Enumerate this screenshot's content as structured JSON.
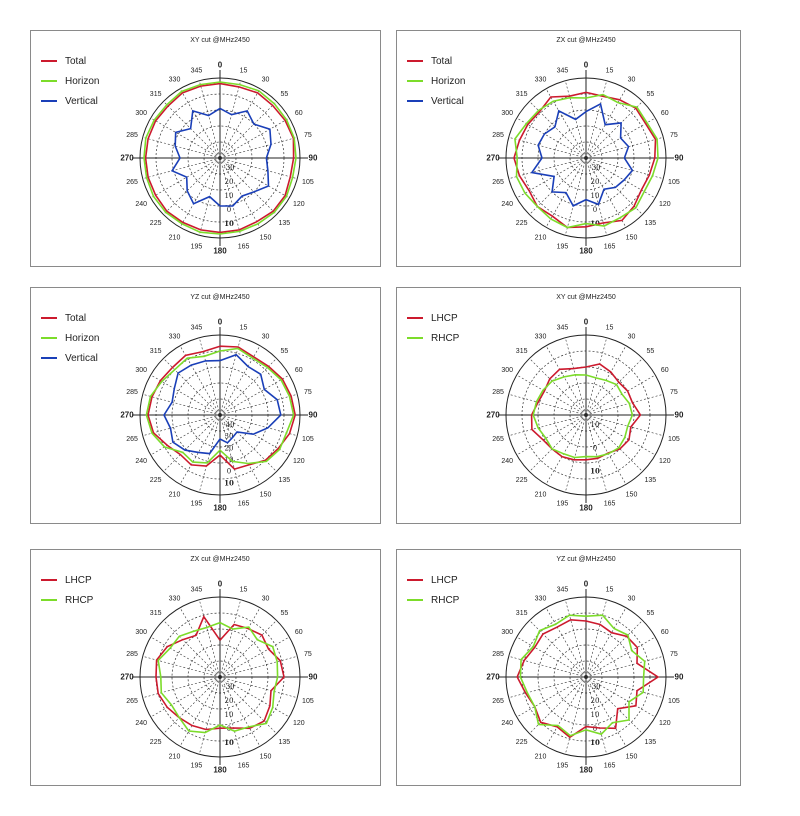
{
  "colors": {
    "Total": "#cc1a2e",
    "Horizon": "#7cdc2a",
    "Vertical": "#1a3fb8",
    "LHCP": "#cc1a2e",
    "RHCP": "#7cdc2a"
  },
  "chart_data": [
    {
      "type": "polar-line",
      "title": "XY cut @MHz2450",
      "angle_labels": [
        "0",
        "15",
        "30",
        "55",
        "60",
        "75",
        "90",
        "105",
        "120",
        "135",
        "150",
        "165",
        "180",
        "195",
        "210",
        "225",
        "240",
        "265",
        "270",
        "285",
        "300",
        "315",
        "330",
        "345"
      ],
      "radial_labels": [
        "-30",
        "20",
        "10",
        "0",
        "10"
      ],
      "series": [
        {
          "name": "Total",
          "values": [
            0.93,
            0.92,
            0.94,
            0.93,
            0.94,
            0.95,
            0.92,
            0.91,
            0.94,
            0.94,
            0.92,
            0.93,
            0.93,
            0.93,
            0.93,
            0.94,
            0.93,
            0.93,
            0.93,
            0.93,
            0.93,
            0.92,
            0.94,
            0.93
          ]
        },
        {
          "name": "Horizon",
          "values": [
            0.95,
            0.95,
            0.97,
            0.96,
            0.96,
            0.96,
            0.95,
            0.94,
            0.96,
            0.96,
            0.95,
            0.95,
            0.95,
            0.96,
            0.95,
            0.96,
            0.96,
            0.95,
            0.95,
            0.96,
            0.95,
            0.94,
            0.96,
            0.95
          ]
        },
        {
          "name": "Vertical",
          "values": [
            0.62,
            0.56,
            0.68,
            0.6,
            0.72,
            0.66,
            0.58,
            0.62,
            0.7,
            0.6,
            0.55,
            0.62,
            0.6,
            0.5,
            0.66,
            0.58,
            0.48,
            0.62,
            0.5,
            0.58,
            0.64,
            0.52,
            0.68,
            0.55
          ]
        }
      ]
    },
    {
      "type": "polar-line",
      "title": "ZX cut @MHz2450",
      "angle_labels": [
        "0",
        "15",
        "30",
        "55",
        "60",
        "75",
        "90",
        "105",
        "120",
        "135",
        "150",
        "165",
        "180",
        "195",
        "210",
        "225",
        "240",
        "265",
        "270",
        "285",
        "300",
        "315",
        "330",
        "345"
      ],
      "radial_labels": [
        "-30",
        "20",
        "10",
        "0",
        "10"
      ],
      "series": [
        {
          "name": "Total",
          "values": [
            0.82,
            0.8,
            0.84,
            0.88,
            0.86,
            0.9,
            0.86,
            0.82,
            0.8,
            0.85,
            0.9,
            0.84,
            0.86,
            0.9,
            0.84,
            0.86,
            0.82,
            0.86,
            0.9,
            0.86,
            0.84,
            0.82,
            0.88,
            0.8
          ]
        },
        {
          "name": "Horizon",
          "values": [
            0.75,
            0.82,
            0.8,
            0.9,
            0.88,
            0.92,
            0.9,
            0.86,
            0.84,
            0.88,
            0.86,
            0.88,
            0.82,
            0.9,
            0.88,
            0.86,
            0.88,
            0.9,
            0.86,
            0.92,
            0.86,
            0.84,
            0.82,
            0.78
          ]
        },
        {
          "name": "Vertical",
          "values": [
            0.58,
            0.7,
            0.48,
            0.62,
            0.5,
            0.55,
            0.48,
            0.6,
            0.55,
            0.52,
            0.45,
            0.6,
            0.52,
            0.62,
            0.5,
            0.6,
            0.46,
            0.7,
            0.55,
            0.62,
            0.6,
            0.55,
            0.68,
            0.5
          ]
        }
      ]
    },
    {
      "type": "polar-line",
      "title": "YZ cut @MHz2450",
      "angle_labels": [
        "0",
        "15",
        "30",
        "55",
        "60",
        "75",
        "90",
        "105",
        "120",
        "135",
        "150",
        "165",
        "180",
        "195",
        "210",
        "225",
        "240",
        "265",
        "270",
        "285",
        "300",
        "315",
        "330",
        "345"
      ],
      "radial_labels": [
        "-40",
        "30",
        "20",
        "10",
        "0",
        "10"
      ],
      "series": [
        {
          "name": "Total",
          "values": [
            0.86,
            0.88,
            0.84,
            0.86,
            0.9,
            0.92,
            0.94,
            0.9,
            0.84,
            0.8,
            0.72,
            0.7,
            0.5,
            0.66,
            0.72,
            0.7,
            0.76,
            0.86,
            0.9,
            0.88,
            0.86,
            0.84,
            0.86,
            0.82
          ]
        },
        {
          "name": "Horizon",
          "values": [
            0.8,
            0.86,
            0.82,
            0.84,
            0.88,
            0.9,
            0.92,
            0.86,
            0.86,
            0.82,
            0.7,
            0.6,
            0.44,
            0.62,
            0.68,
            0.66,
            0.8,
            0.88,
            0.92,
            0.9,
            0.84,
            0.8,
            0.82,
            0.76
          ]
        },
        {
          "name": "Vertical",
          "values": [
            0.68,
            0.78,
            0.7,
            0.72,
            0.64,
            0.74,
            0.76,
            0.62,
            0.48,
            0.3,
            0.32,
            0.36,
            0.3,
            0.5,
            0.54,
            0.62,
            0.68,
            0.64,
            0.7,
            0.62,
            0.66,
            0.74,
            0.72,
            0.7
          ]
        }
      ]
    },
    {
      "type": "polar-line",
      "title": "XY cut @MHz2450",
      "angle_labels": [
        "0",
        "15",
        "30",
        "55",
        "60",
        "75",
        "90",
        "105",
        "120",
        "135",
        "150",
        "165",
        "180",
        "195",
        "210",
        "225",
        "240",
        "265",
        "270",
        "285",
        "300",
        "315",
        "330",
        "345"
      ],
      "radial_labels": [
        "10",
        "0",
        "10"
      ],
      "series": [
        {
          "name": "LHCP",
          "values": [
            0.6,
            0.66,
            0.62,
            0.58,
            0.6,
            0.6,
            0.68,
            0.58,
            0.62,
            0.6,
            0.55,
            0.56,
            0.56,
            0.58,
            0.6,
            0.6,
            0.62,
            0.7,
            0.68,
            0.62,
            0.6,
            0.64,
            0.66,
            0.6
          ]
        },
        {
          "name": "RHCP",
          "values": [
            0.5,
            0.48,
            0.5,
            0.54,
            0.52,
            0.56,
            0.58,
            0.54,
            0.56,
            0.58,
            0.56,
            0.54,
            0.52,
            0.55,
            0.56,
            0.6,
            0.58,
            0.62,
            0.66,
            0.64,
            0.62,
            0.6,
            0.55,
            0.52
          ]
        }
      ]
    },
    {
      "type": "polar-line",
      "title": "ZX cut @MHz2450",
      "angle_labels": [
        "0",
        "15",
        "30",
        "55",
        "60",
        "75",
        "90",
        "105",
        "120",
        "135",
        "150",
        "165",
        "180",
        "195",
        "210",
        "225",
        "240",
        "265",
        "270",
        "285",
        "300",
        "315",
        "330",
        "345"
      ],
      "radial_labels": [
        "-30",
        "20",
        "10",
        "0",
        "10"
      ],
      "series": [
        {
          "name": "LHCP",
          "values": [
            0.46,
            0.68,
            0.7,
            0.74,
            0.7,
            0.78,
            0.8,
            0.66,
            0.72,
            0.78,
            0.74,
            0.66,
            0.64,
            0.68,
            0.7,
            0.72,
            0.76,
            0.8,
            0.8,
            0.82,
            0.76,
            0.66,
            0.6,
            0.78
          ]
        },
        {
          "name": "RHCP",
          "values": [
            0.68,
            0.62,
            0.72,
            0.66,
            0.76,
            0.74,
            0.72,
            0.7,
            0.76,
            0.82,
            0.72,
            0.7,
            0.6,
            0.72,
            0.78,
            0.72,
            0.7,
            0.76,
            0.74,
            0.8,
            0.72,
            0.72,
            0.66,
            0.64
          ]
        }
      ]
    },
    {
      "type": "polar-line",
      "title": "YZ cut @MHz2450",
      "angle_labels": [
        "0",
        "15",
        "30",
        "55",
        "60",
        "75",
        "90",
        "105",
        "120",
        "135",
        "150",
        "165",
        "180",
        "195",
        "210",
        "225",
        "240",
        "265",
        "270",
        "285",
        "300",
        "315",
        "330",
        "345"
      ],
      "radial_labels": [
        "-30",
        "20",
        "10",
        "0",
        "10"
      ],
      "series": [
        {
          "name": "LHCP",
          "values": [
            0.7,
            0.68,
            0.64,
            0.72,
            0.74,
            0.66,
            0.9,
            0.66,
            0.72,
            0.56,
            0.74,
            0.66,
            0.62,
            0.78,
            0.72,
            0.8,
            0.74,
            0.78,
            0.86,
            0.8,
            0.74,
            0.76,
            0.72,
            0.74
          ]
        },
        {
          "name": "RHCP",
          "values": [
            0.76,
            0.8,
            0.7,
            0.74,
            0.66,
            0.76,
            0.72,
            0.74,
            0.62,
            0.76,
            0.66,
            0.74,
            0.66,
            0.76,
            0.7,
            0.84,
            0.74,
            0.76,
            0.82,
            0.84,
            0.76,
            0.82,
            0.76,
            0.8
          ]
        }
      ]
    }
  ]
}
